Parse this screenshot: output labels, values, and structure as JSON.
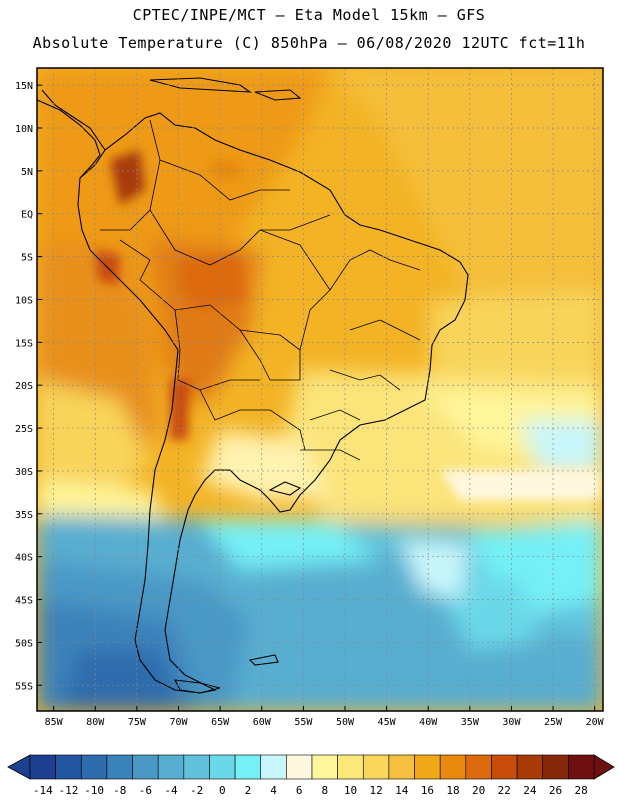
{
  "header": {
    "line1": "CPTEC/INPE/MCT  –   Eta Model 15km  –  GFS",
    "line2": "Absolute Temperature (C) 850hPa – 06/08/2020 12UTC fct=11h"
  },
  "map": {
    "lon_range": [
      -87,
      -19
    ],
    "lat_range": [
      -58,
      17
    ],
    "lon_ticks": [
      {
        "value": -85,
        "label": "85W"
      },
      {
        "value": -80,
        "label": "80W"
      },
      {
        "value": -75,
        "label": "75W"
      },
      {
        "value": -70,
        "label": "70W"
      },
      {
        "value": -65,
        "label": "65W"
      },
      {
        "value": -60,
        "label": "60W"
      },
      {
        "value": -55,
        "label": "55W"
      },
      {
        "value": -50,
        "label": "50W"
      },
      {
        "value": -45,
        "label": "45W"
      },
      {
        "value": -40,
        "label": "40W"
      },
      {
        "value": -35,
        "label": "35W"
      },
      {
        "value": -30,
        "label": "30W"
      },
      {
        "value": -25,
        "label": "25W"
      },
      {
        "value": -20,
        "label": "20W"
      }
    ],
    "lat_ticks": [
      {
        "value": 15,
        "label": "15N"
      },
      {
        "value": 10,
        "label": "10N"
      },
      {
        "value": 5,
        "label": "5N"
      },
      {
        "value": 0,
        "label": "EQ"
      },
      {
        "value": -5,
        "label": "5S"
      },
      {
        "value": -10,
        "label": "10S"
      },
      {
        "value": -15,
        "label": "15S"
      },
      {
        "value": -20,
        "label": "20S"
      },
      {
        "value": -25,
        "label": "25S"
      },
      {
        "value": -30,
        "label": "30S"
      },
      {
        "value": -35,
        "label": "35S"
      },
      {
        "value": -40,
        "label": "40S"
      },
      {
        "value": -45,
        "label": "45S"
      },
      {
        "value": -50,
        "label": "50S"
      },
      {
        "value": -55,
        "label": "55S"
      }
    ]
  },
  "colorbar": {
    "labels": [
      "-14",
      "-12",
      "-10",
      "-8",
      "-6",
      "-4",
      "-2",
      "0",
      "2",
      "4",
      "6",
      "8",
      "10",
      "12",
      "14",
      "16",
      "18",
      "20",
      "22",
      "24",
      "26",
      "28"
    ],
    "colors": [
      "#1c3f8f",
      "#2356a0",
      "#2d6cad",
      "#3a82ba",
      "#4a98c6",
      "#58aed0",
      "#62c2dc",
      "#6ad8e8",
      "#74f0f6",
      "#c8f6fa",
      "#fff8e0",
      "#fff59a",
      "#fde97a",
      "#fad75c",
      "#f5c040",
      "#f0a818",
      "#e88a10",
      "#dd6a0c",
      "#c84c0a",
      "#a83a08",
      "#88280a",
      "#6e1010"
    ]
  }
}
